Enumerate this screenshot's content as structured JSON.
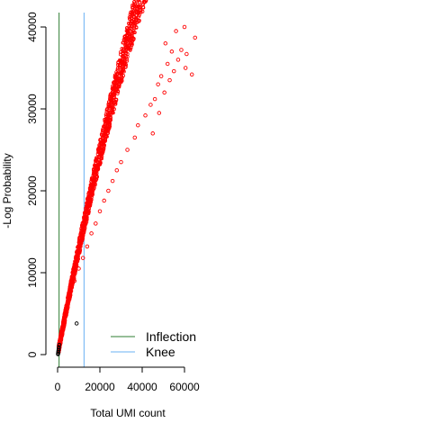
{
  "chart_data": {
    "type": "scatter",
    "title": "",
    "xlabel": "Total UMI count",
    "ylabel": "-Log Probability",
    "xlim": [
      -3000,
      66000
    ],
    "ylim": [
      -1000,
      41000
    ],
    "x_ticks": [
      0,
      20000,
      40000,
      60000
    ],
    "x_tick_labels": [
      "0",
      "20000",
      "40000",
      "60000"
    ],
    "y_ticks": [
      0,
      10000,
      20000,
      30000,
      40000
    ],
    "y_tick_labels": [
      "0",
      "10000",
      "20000",
      "30000",
      "40000"
    ],
    "grid": false,
    "legend_position": "bottom-right",
    "reference_lines": [
      {
        "name": "Inflection",
        "x": 700,
        "color": "#2e7d32"
      },
      {
        "name": "Knee",
        "x": 12500,
        "color": "#6ab0f3"
      }
    ],
    "series": [
      {
        "color": "#ff0000",
        "points": [
          [
            60000,
            40000
          ],
          [
            56000,
            39500
          ],
          [
            65000,
            38700
          ],
          [
            51000,
            38000
          ],
          [
            58500,
            37200
          ],
          [
            54000,
            37000
          ],
          [
            61000,
            36700
          ],
          [
            57000,
            36000
          ],
          [
            52000,
            35500
          ],
          [
            60500,
            35000
          ],
          [
            55000,
            34600
          ],
          [
            63500,
            34200
          ],
          [
            49000,
            34000
          ],
          [
            53000,
            33500
          ],
          [
            47500,
            33000
          ],
          [
            50500,
            32000
          ],
          [
            46000,
            31200
          ],
          [
            44000,
            30500
          ],
          [
            48000,
            29500
          ],
          [
            41500,
            29200
          ],
          [
            38000,
            28000
          ],
          [
            45000,
            27000
          ],
          [
            36500,
            26500
          ],
          [
            33000,
            25000
          ],
          [
            30000,
            23500
          ],
          [
            28000,
            22500
          ],
          [
            26000,
            21200
          ],
          [
            24000,
            20000
          ],
          [
            22000,
            18800
          ],
          [
            20000,
            17500
          ],
          [
            18000,
            16000
          ],
          [
            16000,
            14800
          ],
          [
            14000,
            13200
          ],
          [
            12000,
            11800
          ],
          [
            10000,
            10500
          ],
          [
            8000,
            9000
          ],
          [
            6000,
            7500
          ],
          [
            4000,
            5500
          ],
          [
            3000,
            4200
          ],
          [
            2000,
            3000
          ],
          [
            1500,
            2200
          ],
          [
            1000,
            1500
          ]
        ]
      },
      {
        "color": "#000000",
        "points": [
          [
            9000,
            3800
          ],
          [
            800,
            1200
          ],
          [
            600,
            900
          ],
          [
            500,
            700
          ],
          [
            400,
            500
          ],
          [
            300,
            300
          ],
          [
            250,
            150
          ],
          [
            200,
            50
          ]
        ]
      }
    ]
  }
}
